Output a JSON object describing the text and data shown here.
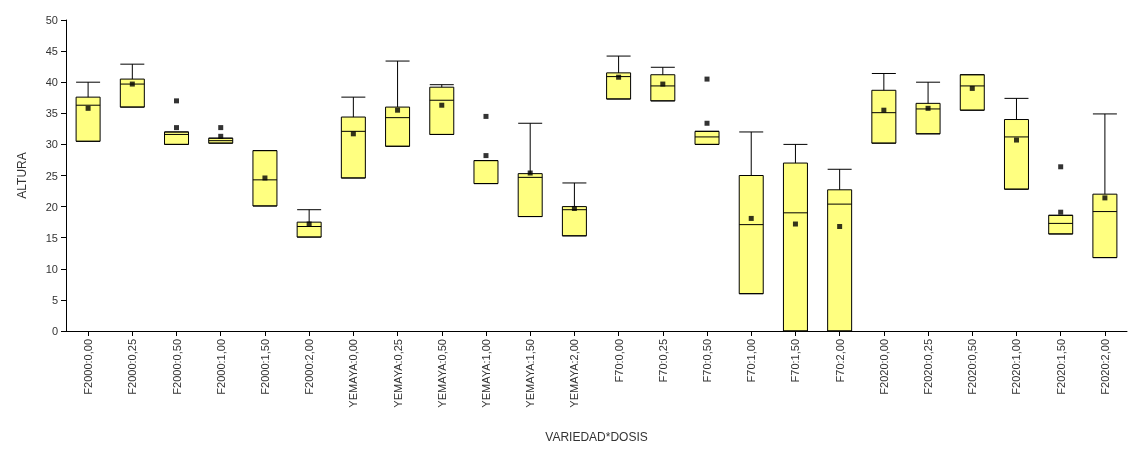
{
  "chart_data": {
    "type": "box",
    "xlabel": "VARIEDAD*DOSIS",
    "ylabel": "ALTURA",
    "color": "#ffff80",
    "categories": [
      "F2000:0,00",
      "F2000:0,25",
      "F2000:0,50",
      "F2000:1,00",
      "F2000:1,50",
      "F2000:2,00",
      "YEMAYA:0,00",
      "YEMAYA:0,25",
      "YEMAYA:0,50",
      "YEMAYA:1,00",
      "YEMAYA:1,50",
      "YEMAYA:2,00",
      "F70:0,00",
      "F70:0,25",
      "F70:0,50",
      "F70:1,00",
      "F70:1,50",
      "F70:2,00",
      "F2020:0,00",
      "F2020:0,25",
      "F2020:0,50",
      "F2020:1,00",
      "F2020:1,50",
      "F2020:2,00"
    ],
    "boxes": [
      {
        "low": 30.5,
        "q1": 30.5,
        "median": 36.3,
        "q3": 37.6,
        "high": 40,
        "mean": 35.8
      },
      {
        "low": 36,
        "q1": 36,
        "median": 39.7,
        "q3": 40.5,
        "high": 42.9,
        "mean": 39.7
      },
      {
        "low": 30,
        "q1": 30,
        "median": 31.6,
        "q3": 32,
        "high": 32,
        "mean": 32.7,
        "outliers": [
          37
        ]
      },
      {
        "low": 30.2,
        "q1": 30.2,
        "median": 30.6,
        "q3": 31,
        "high": 31,
        "mean": 31.3,
        "outliers": [
          32.7
        ]
      },
      {
        "low": 20.1,
        "q1": 20.1,
        "median": 24.3,
        "q3": 29,
        "high": 29,
        "mean": 24.6
      },
      {
        "low": 15.1,
        "q1": 15.1,
        "median": 16.8,
        "q3": 17.5,
        "high": 19.5,
        "mean": 17.2
      },
      {
        "low": 24.6,
        "q1": 24.6,
        "median": 32.1,
        "q3": 34.4,
        "high": 37.6,
        "mean": 31.7
      },
      {
        "low": 29.7,
        "q1": 29.7,
        "median": 34.3,
        "q3": 36,
        "high": 43.4,
        "mean": 35.5
      },
      {
        "low": 31.6,
        "q1": 31.6,
        "median": 37.1,
        "q3": 39.2,
        "high": 39.6,
        "mean": 36.3
      },
      {
        "low": 23.7,
        "q1": 23.7,
        "median": 27.4,
        "q3": 27.4,
        "high": 27.4,
        "mean": 28.2,
        "outliers": [
          34.5
        ]
      },
      {
        "low": 18.4,
        "q1": 18.4,
        "median": 24.7,
        "q3": 25.3,
        "high": 33.4,
        "mean": 25.4
      },
      {
        "low": 15.3,
        "q1": 15.3,
        "median": 19.5,
        "q3": 20,
        "high": 23.8,
        "mean": 19.7
      },
      {
        "low": 37.3,
        "q1": 37.3,
        "median": 40.9,
        "q3": 41.5,
        "high": 44.2,
        "mean": 40.8
      },
      {
        "low": 37,
        "q1": 37,
        "median": 39.4,
        "q3": 41.2,
        "high": 42.4,
        "mean": 39.7
      },
      {
        "low": 30,
        "q1": 30,
        "median": 31.2,
        "q3": 32.1,
        "high": 32.1,
        "mean": 33.4,
        "outliers": [
          40.5
        ]
      },
      {
        "low": 6,
        "q1": 6,
        "median": 17.1,
        "q3": 25,
        "high": 32,
        "mean": 18.1
      },
      {
        "low": 0,
        "q1": 0,
        "median": 19,
        "q3": 27,
        "high": 30,
        "mean": 17.2
      },
      {
        "low": 0,
        "q1": 0,
        "median": 20.4,
        "q3": 22.7,
        "high": 26,
        "mean": 16.8
      },
      {
        "low": 30.2,
        "q1": 30.2,
        "median": 35.1,
        "q3": 38.7,
        "high": 41.4,
        "mean": 35.5
      },
      {
        "low": 31.7,
        "q1": 31.7,
        "median": 35.7,
        "q3": 36.6,
        "high": 40,
        "mean": 35.8
      },
      {
        "low": 35.5,
        "q1": 35.5,
        "median": 39.4,
        "q3": 41.2,
        "high": 41.2,
        "mean": 39
      },
      {
        "low": 22.8,
        "q1": 22.8,
        "median": 31.2,
        "q3": 34,
        "high": 37.4,
        "mean": 30.7
      },
      {
        "low": 15.6,
        "q1": 15.6,
        "median": 17.3,
        "q3": 18.6,
        "high": 18.6,
        "mean": 19.1,
        "outliers": [
          26.4
        ]
      },
      {
        "low": 11.8,
        "q1": 11.8,
        "median": 19.2,
        "q3": 22,
        "high": 34.9,
        "mean": 21.4
      }
    ],
    "ylim": [
      0,
      50
    ],
    "yticks": [
      0,
      5,
      10,
      15,
      20,
      25,
      30,
      35,
      40,
      45,
      50
    ],
    "grid": false
  }
}
